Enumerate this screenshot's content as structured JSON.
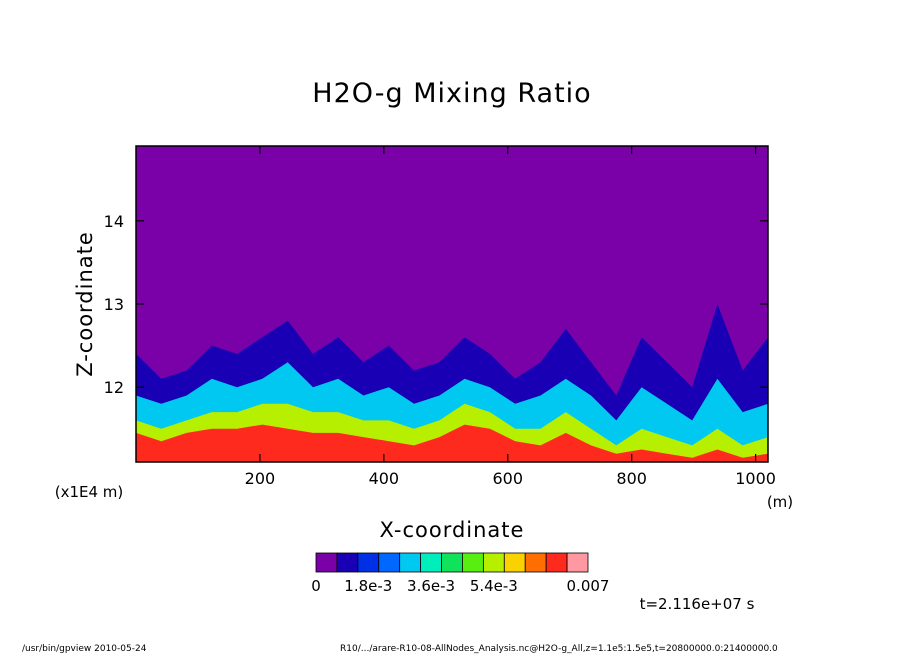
{
  "chart_data": {
    "type": "heatmap",
    "title": "H2O-g Mixing Ratio",
    "xlabel": "X-coordinate",
    "ylabel": "Z-coordinate",
    "x_unit": "(m)",
    "y_unit": "(x1E4 m)",
    "xlim": [
      0,
      1020
    ],
    "ylim": [
      11.1,
      14.9
    ],
    "xticks": [
      "200",
      "400",
      "600",
      "800",
      "1000"
    ],
    "yticks": [
      "12",
      "13",
      "14"
    ],
    "colorbar": {
      "colors": [
        "#7a00a8",
        "#1a00b4",
        "#0030e6",
        "#0068ff",
        "#00c8f0",
        "#00eebc",
        "#10e25c",
        "#58ee10",
        "#b6f000",
        "#fad200",
        "#ff6e00",
        "#ff2a1e",
        "#ff98a0"
      ],
      "tick_labels": [
        "0",
        "1.8e-3",
        "3.6e-3",
        "5.4e-3",
        "0.007"
      ],
      "min": 0,
      "max": 0.007
    },
    "band_boundaries_z": [
      {
        "level": "2.5e-4",
        "z_top": [
          12.4,
          12.1,
          12.2,
          12.5,
          12.4,
          12.6,
          12.8,
          12.4,
          12.6,
          12.3,
          12.5,
          12.2,
          12.3,
          12.6,
          12.4,
          12.1,
          12.3,
          12.7,
          12.3,
          11.9,
          12.6,
          12.3,
          12.0,
          13.0,
          12.2,
          12.6
        ]
      },
      {
        "level": "1.0e-3",
        "z_top": [
          11.9,
          11.8,
          11.9,
          12.1,
          12.0,
          12.1,
          12.3,
          12.0,
          12.1,
          11.9,
          12.0,
          11.8,
          11.9,
          12.1,
          12.0,
          11.8,
          11.9,
          12.1,
          11.9,
          11.6,
          12.0,
          11.8,
          11.6,
          12.1,
          11.7,
          11.8
        ]
      },
      {
        "level": "3.0e-3",
        "z_top": [
          11.6,
          11.5,
          11.6,
          11.7,
          11.7,
          11.8,
          11.8,
          11.7,
          11.7,
          11.6,
          11.6,
          11.5,
          11.6,
          11.8,
          11.7,
          11.5,
          11.5,
          11.7,
          11.5,
          11.3,
          11.5,
          11.4,
          11.3,
          11.5,
          11.3,
          11.4
        ]
      },
      {
        "level": "5.0e-3",
        "z_top": [
          11.45,
          11.35,
          11.45,
          11.5,
          11.5,
          11.55,
          11.5,
          11.45,
          11.45,
          11.4,
          11.35,
          11.3,
          11.4,
          11.55,
          11.5,
          11.35,
          11.3,
          11.45,
          11.3,
          11.2,
          11.25,
          11.2,
          11.15,
          11.25,
          11.15,
          11.2
        ]
      }
    ]
  },
  "time_label": "t=2.116e+07 s",
  "footer": {
    "left": "/usr/bin/gpview   2010-05-24",
    "right": "R10/.../arare-R10-08-AllNodes_Analysis.nc@H2O-g_All,z=1.1e5:1.5e5,t=20800000.0:21400000.0"
  }
}
